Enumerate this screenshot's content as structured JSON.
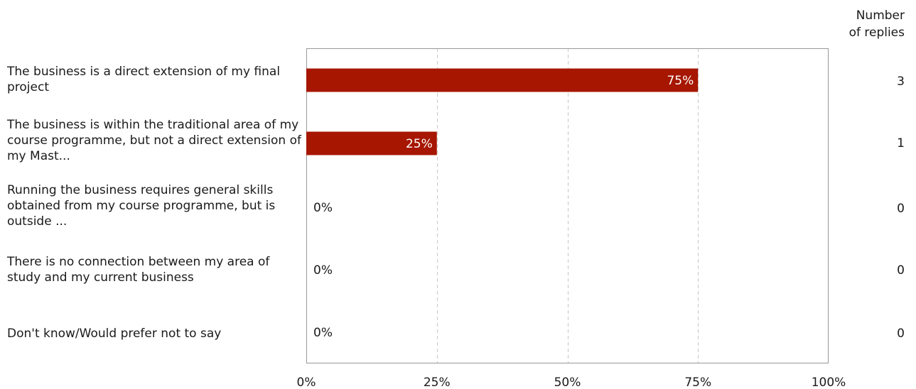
{
  "chart_data": {
    "type": "bar",
    "orientation": "horizontal",
    "categories": [
      "The business is a direct extension of my final project",
      "The business is within the traditional area of my course programme, but not a direct extension of my Mast...",
      "Running the business requires general skills obtained from my course programme, but is outside ...",
      "There is no connection between my area of study and my current business",
      "Don't know/Would prefer not to say"
    ],
    "values": [
      75,
      25,
      0,
      0,
      0
    ],
    "value_labels": [
      "75%",
      "25%",
      "0%",
      "0%",
      "0%"
    ],
    "counts": [
      "3",
      "1",
      "0",
      "0",
      "0"
    ],
    "count_header": [
      "Number",
      "of replies"
    ],
    "xlim": [
      0,
      100
    ],
    "x_ticks": [
      "0%",
      "25%",
      "50%",
      "75%",
      "100%"
    ],
    "grid": "vertical dashed",
    "title": "",
    "xlabel": "",
    "ylabel": ""
  },
  "colors": {
    "bar": "#a61600",
    "grid": "#c8c8c8",
    "frame": "#999999",
    "text": "#1a1a1a",
    "bar_label": "#ffffff"
  }
}
